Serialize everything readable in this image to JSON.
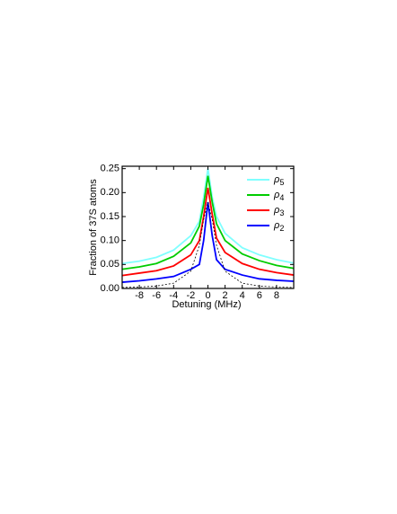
{
  "chart_data": {
    "type": "line",
    "x_label": "Detuning (MHz)",
    "y_label": "Fraction of 37S atoms",
    "x": [
      -10,
      -8,
      -6,
      -4,
      -2,
      -1,
      -0.5,
      0,
      0.5,
      1,
      2,
      4,
      6,
      8,
      10
    ],
    "series": [
      {
        "name": "ρ5",
        "color": "#80ffff",
        "values": [
          0.052,
          0.057,
          0.065,
          0.08,
          0.11,
          0.14,
          0.19,
          0.25,
          0.19,
          0.15,
          0.115,
          0.085,
          0.07,
          0.06,
          0.053
        ]
      },
      {
        "name": "ρ4",
        "color": "#00cc00",
        "values": [
          0.04,
          0.045,
          0.052,
          0.067,
          0.095,
          0.13,
          0.175,
          0.235,
          0.18,
          0.135,
          0.1,
          0.072,
          0.058,
          0.048,
          0.042
        ]
      },
      {
        "name": "ρ3",
        "color": "#ff0000",
        "values": [
          0.027,
          0.032,
          0.037,
          0.047,
          0.07,
          0.1,
          0.15,
          0.21,
          0.155,
          0.105,
          0.075,
          0.052,
          0.04,
          0.033,
          0.028
        ]
      },
      {
        "name": "ρ2",
        "color": "#0000ff",
        "values": [
          0.013,
          0.016,
          0.02,
          0.025,
          0.04,
          0.05,
          0.1,
          0.18,
          0.11,
          0.06,
          0.04,
          0.028,
          0.02,
          0.017,
          0.015
        ]
      },
      {
        "color": "#000000",
        "dashed": true,
        "values": [
          0.002,
          0.003,
          0.005,
          0.011,
          0.036,
          0.09,
          0.144,
          0.18,
          0.144,
          0.09,
          0.036,
          0.011,
          0.005,
          0.003,
          0.002
        ]
      }
    ],
    "xlim": [
      -10,
      10
    ],
    "xticks": [
      -8,
      -6,
      -4,
      -2,
      0,
      2,
      4,
      6,
      8
    ],
    "ylim": [
      0,
      0.255
    ],
    "yticks": [
      {
        "value": 0,
        "label": "0.00"
      },
      {
        "value": 0.05,
        "label": "0.05"
      },
      {
        "value": 0.1,
        "label": "0.10"
      },
      {
        "value": 0.15,
        "label": "0.15"
      },
      {
        "value": 0.2,
        "label": "0.20"
      },
      {
        "value": 0.25,
        "label": "0.25"
      }
    ],
    "legend": "upper right",
    "grid": false
  }
}
